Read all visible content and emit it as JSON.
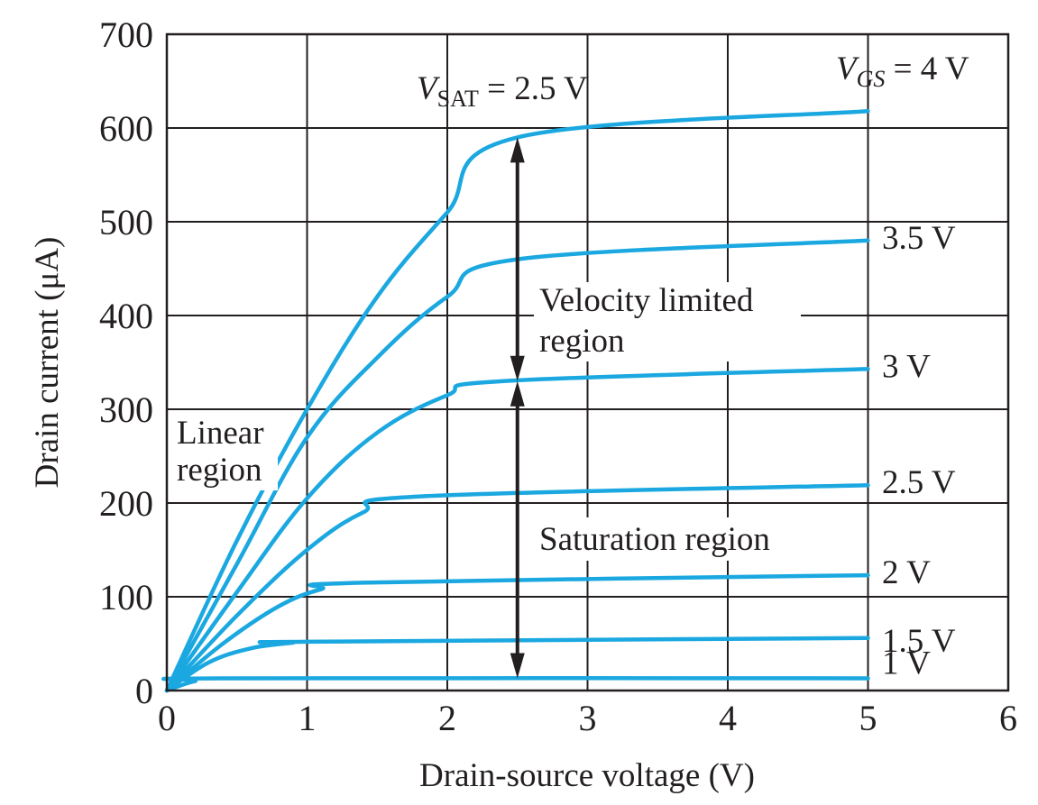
{
  "chart_data": {
    "type": "line",
    "title": "",
    "xlabel": "Drain-source voltage (V)",
    "ylabel": "Drain current (μA)",
    "xlim": [
      0,
      6
    ],
    "ylim": [
      0,
      700
    ],
    "xticks": [
      "0",
      "1",
      "2",
      "3",
      "4",
      "5",
      "6"
    ],
    "yticks": [
      "0",
      "100",
      "200",
      "300",
      "400",
      "500",
      "600",
      "700"
    ],
    "grid": true,
    "series": [
      {
        "name": "1 V",
        "color": "#1ba8e0",
        "x": [
          0,
          0.2,
          0.4,
          5
        ],
        "y": [
          0,
          10,
          13,
          13
        ]
      },
      {
        "name": "1.5 V",
        "color": "#1ba8e0",
        "x": [
          0,
          0.3,
          0.6,
          0.9,
          1.0,
          5
        ],
        "y": [
          0,
          30,
          45,
          51,
          52,
          56
        ]
      },
      {
        "name": "2 V",
        "color": "#1ba8e0",
        "x": [
          0,
          0.4,
          0.8,
          1.1,
          1.4,
          5
        ],
        "y": [
          0,
          50,
          90,
          108,
          115,
          123
        ]
      },
      {
        "name": "2.5 V",
        "color": "#1ba8e0",
        "x": [
          0,
          0.5,
          1.0,
          1.4,
          1.8,
          5
        ],
        "y": [
          0,
          80,
          150,
          190,
          207,
          219
        ]
      },
      {
        "name": "3 V",
        "color": "#1ba8e0",
        "x": [
          0,
          0.5,
          1.0,
          1.5,
          2.0,
          2.4,
          5
        ],
        "y": [
          0,
          105,
          205,
          275,
          315,
          330,
          343
        ]
      },
      {
        "name": "3.5 V",
        "color": "#1ba8e0",
        "x": [
          0,
          0.5,
          1.0,
          1.5,
          2.0,
          2.5,
          5
        ],
        "y": [
          0,
          135,
          270,
          355,
          420,
          460,
          480
        ]
      },
      {
        "name": "V_GS = 4 V",
        "color": "#1ba8e0",
        "x": [
          0,
          0.5,
          1.0,
          1.5,
          2.0,
          2.5,
          5
        ],
        "y": [
          0,
          160,
          300,
          420,
          510,
          590,
          618
        ]
      }
    ],
    "series_labels": [
      "1 V",
      "1.5 V",
      "2 V",
      "2.5 V",
      "3 V",
      "3.5 V"
    ],
    "vgs_label": {
      "v": "V",
      "sub": "GS",
      "rest": " = 4 V"
    },
    "vsat_label": {
      "v": "V",
      "sub": "SAT",
      "rest": " = 2.5 V"
    },
    "annotations": {
      "linear_line1": "Linear",
      "linear_line2": "region",
      "velocity_line1": "Velocity limited",
      "velocity_line2": "region",
      "saturation": "Saturation region"
    },
    "arrows": [
      {
        "x": 2.5,
        "y_from": 590,
        "y_to": 330,
        "double_headed": true
      },
      {
        "x": 2.5,
        "y_from": 330,
        "y_to": 13,
        "double_headed": true
      }
    ]
  }
}
